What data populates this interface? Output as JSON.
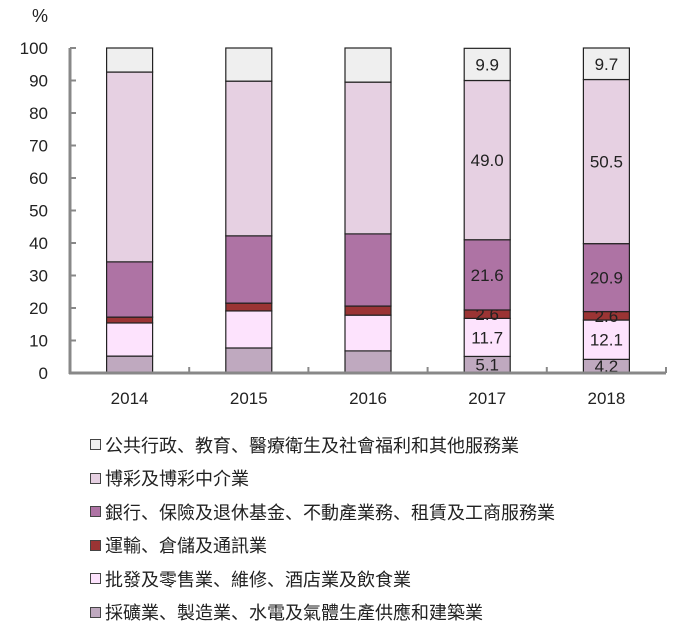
{
  "chart_data": {
    "type": "bar",
    "stacked": true,
    "title": "",
    "xlabel": "",
    "ylabel": "%",
    "ylim": [
      0,
      100
    ],
    "yticks": [
      0,
      10,
      20,
      30,
      40,
      50,
      60,
      70,
      80,
      90,
      100
    ],
    "grid": false,
    "legend_position": "bottom",
    "categories": [
      "2014",
      "2015",
      "2016",
      "2017",
      "2018"
    ],
    "series": [
      {
        "name": "採礦業、製造業、水電及氣體生產供應和建築業",
        "color": "#bfa9bf",
        "values": [
          5.2,
          7.7,
          6.8,
          5.1,
          4.2
        ],
        "labels": [
          "",
          "",
          "",
          "5.1",
          "4.2"
        ]
      },
      {
        "name": "批發及零售業、維修、酒店業及飲食業",
        "color": "#fde3fd",
        "values": [
          10.2,
          11.4,
          11.0,
          11.7,
          12.1
        ],
        "labels": [
          "",
          "",
          "",
          "11.7",
          "12.1"
        ]
      },
      {
        "name": "運輸、倉儲及通訊業",
        "color": "#9b3434",
        "values": [
          1.8,
          2.4,
          2.8,
          2.6,
          2.6
        ],
        "labels": [
          "",
          "",
          "",
          "2.6",
          "2.6"
        ]
      },
      {
        "name": "銀行、保險及退休基金、不動產業務、租賃及工商服務業",
        "color": "#ae73a4",
        "values": [
          17.0,
          20.7,
          22.2,
          21.6,
          20.9
        ],
        "labels": [
          "",
          "",
          "",
          "21.6",
          "20.9"
        ]
      },
      {
        "name": "博彩及博彩中介業",
        "color": "#e6d0e2",
        "values": [
          58.4,
          47.6,
          46.7,
          49.0,
          50.5
        ],
        "labels": [
          "",
          "",
          "",
          "49.0",
          "50.5"
        ]
      },
      {
        "name": "公共行政、教育、醫療衛生及社會福利和其他服務業",
        "color": "#efefef",
        "values": [
          7.4,
          10.2,
          10.5,
          9.9,
          9.7
        ],
        "labels": [
          "",
          "",
          "",
          "9.9",
          "9.7"
        ]
      }
    ]
  },
  "legend": {
    "items": [
      {
        "label": "公共行政、教育、醫療衛生及社會福利和其他服務業",
        "color": "#efefef"
      },
      {
        "label": "博彩及博彩中介業",
        "color": "#e6d0e2"
      },
      {
        "label": "銀行、保險及退休基金、不動產業務、租賃及工商服務業",
        "color": "#ae73a4"
      },
      {
        "label": "運輸、倉儲及通訊業",
        "color": "#9b3434"
      },
      {
        "label": "批發及零售業、維修、酒店業及飲食業",
        "color": "#fde3fd"
      },
      {
        "label": "採礦業、製造業、水電及氣體生產供應和建築業",
        "color": "#bfa9bf"
      }
    ]
  }
}
